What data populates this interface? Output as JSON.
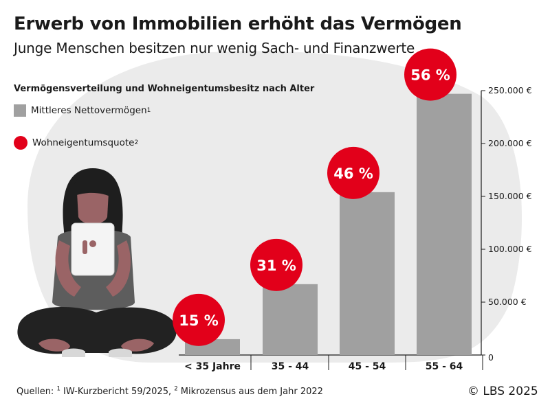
{
  "header": {
    "title": "Erwerb von Immobilien erhöht das Vermögen",
    "subtitle": "Junge Menschen besitzen nur wenig Sach- und Finanzwerte"
  },
  "section_heading": "Vermögensverteilung und Wohneigentumsbesitz nach Alter",
  "legend": {
    "bar_label": "Mittleres Nettovermögen",
    "bar_note": "1",
    "dot_label": "Wohneigentumsquote",
    "dot_note": "2"
  },
  "colors": {
    "bar": "#a0a0a0",
    "dot": "#e2001a",
    "blob": "#ebebeb",
    "text": "#1a1a1a"
  },
  "chart_data": {
    "type": "bar",
    "categories": [
      "< 35 Jahre",
      "35 - 44",
      "45 - 54",
      "55 - 64"
    ],
    "series": [
      {
        "name": "Mittleres Nettovermögen",
        "values": [
          15000,
          67000,
          154000,
          247000
        ],
        "unit": "€"
      },
      {
        "name": "Wohneigentumsquote",
        "values": [
          15,
          31,
          46,
          56
        ],
        "labels": [
          "15 %",
          "31 %",
          "46 %",
          "56 %"
        ],
        "unit": "%"
      }
    ],
    "ylim": [
      0,
      250000
    ],
    "y_ticks": [
      {
        "value": 0,
        "label": "0"
      },
      {
        "value": 50000,
        "label": "50.000 €"
      },
      {
        "value": 100000,
        "label": "100.000 €"
      },
      {
        "value": 150000,
        "label": "150.000 €"
      },
      {
        "value": 200000,
        "label": "200.000 €"
      },
      {
        "value": 250000,
        "label": "250.000 €"
      }
    ],
    "y_axis_position": "right",
    "grid": false,
    "legend_position": "top-left"
  },
  "illustration": {
    "name": "person-with-tablet-icon"
  },
  "footer": {
    "sources_prefix": "Quellen: ",
    "note1": "1",
    "source1": " IW-Kurzbericht 59/2025, ",
    "note2": "2",
    "source2": " Mikrozensus aus dem Jahr 2022",
    "copyright": "© LBS 2025"
  }
}
